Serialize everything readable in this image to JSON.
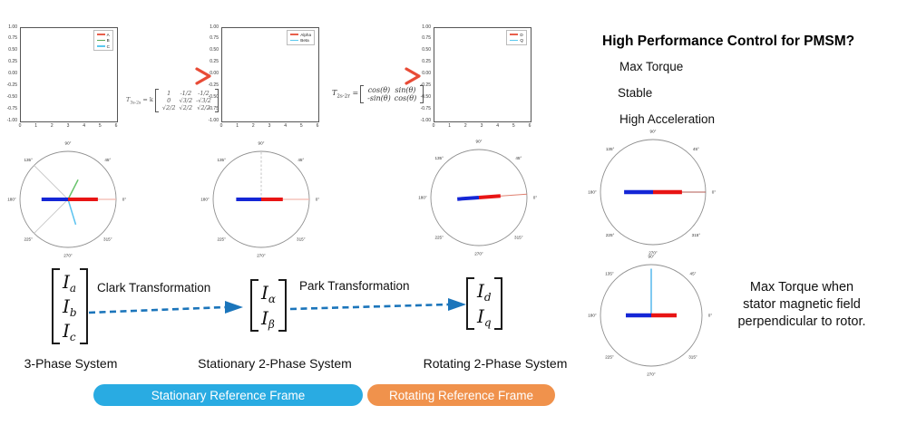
{
  "colors": {
    "button_blue": "#29abe2",
    "button_orange": "#f0924c",
    "flow_arrow_blue": "#1b75bb",
    "gradient_arrow_start": "#2aa9e0",
    "gradient_arrow_end": "#e84b36",
    "vector_red": "#e81414",
    "vector_blue": "#1426d6"
  },
  "chart_data": {
    "line_charts": [
      {
        "type": "line",
        "title": "",
        "x_ticks": [
          "0",
          "1",
          "2",
          "3",
          "4",
          "5",
          "6"
        ],
        "y_ticks": [
          "1.00",
          "0.75",
          "0.50",
          "0.25",
          "0.00",
          "-0.25",
          "-0.50",
          "-0.75",
          "-1.00"
        ],
        "xlim": [
          0,
          6.3
        ],
        "ylim": [
          -1.05,
          1.05
        ],
        "grid": false,
        "legend_position": "upper right",
        "series": [
          {
            "name": "A",
            "color": "#e8604c",
            "values": []
          },
          {
            "name": "B",
            "color": "#5aa85a",
            "values": []
          },
          {
            "name": "C",
            "color": "#5bc8ee",
            "values": []
          }
        ]
      },
      {
        "type": "line",
        "title": "",
        "x_ticks": [
          "0",
          "1",
          "2",
          "3",
          "4",
          "5",
          "6"
        ],
        "y_ticks": [
          "1.00",
          "0.75",
          "0.50",
          "0.25",
          "0.00",
          "-0.25",
          "-0.50",
          "-0.75",
          "-1.00"
        ],
        "xlim": [
          0,
          6.3
        ],
        "ylim": [
          -1.05,
          1.05
        ],
        "grid": false,
        "legend_position": "upper right",
        "series": [
          {
            "name": "Alpha",
            "color": "#e8604c",
            "values": []
          },
          {
            "name": "Beta",
            "color": "#5bc8ee",
            "values": []
          }
        ]
      },
      {
        "type": "line",
        "title": "",
        "x_ticks": [
          "0",
          "1",
          "2",
          "3",
          "4",
          "5",
          "6"
        ],
        "y_ticks": [
          "1.00",
          "0.75",
          "0.50",
          "0.25",
          "0.00",
          "-0.25",
          "-0.50",
          "-0.75",
          "-1.00"
        ],
        "xlim": [
          0,
          6.3
        ],
        "ylim": [
          -1.05,
          1.05
        ],
        "grid": false,
        "legend_position": "upper right",
        "series": [
          {
            "name": "D",
            "color": "#e8604c",
            "values": []
          },
          {
            "name": "Q",
            "color": "#5bc8ee",
            "values": []
          }
        ]
      }
    ],
    "polar_plots": [
      {
        "name": "3-phase current vectors",
        "angle_labels": [
          "0°",
          "45°",
          "90°",
          "135°",
          "180°",
          "225°",
          "270°",
          "315°"
        ],
        "radius": 53,
        "vectors": [
          {
            "angle": 135,
            "len": 1.0,
            "color": "#c9c9c9",
            "width": 0.9
          },
          {
            "angle": 225,
            "len": 1.0,
            "color": "#c9c9c9",
            "width": 0.9
          },
          {
            "angle": 0,
            "len": 1.0,
            "color": "#f2b6ae",
            "width": 1.2
          },
          {
            "angle": 63,
            "len": 0.46,
            "color": "#66c26a",
            "width": 1.5
          },
          {
            "angle": 287,
            "len": 0.55,
            "color": "#5bc3f0",
            "width": 1.5
          },
          {
            "angle": 180,
            "len": 0.55,
            "color": "#1426d6",
            "width": 4
          },
          {
            "angle": 0,
            "len": 0.62,
            "color": "#e81414",
            "width": 4
          }
        ]
      },
      {
        "name": "stationary 2-phase vectors",
        "angle_labels": [
          "0°",
          "45°",
          "90°",
          "135°",
          "180°",
          "225°",
          "270°",
          "315°"
        ],
        "radius": 53,
        "vectors": [
          {
            "angle": 90,
            "len": 1.0,
            "color": "#bfbfbf",
            "width": 0.9,
            "dash": true
          },
          {
            "angle": 0,
            "len": 1.0,
            "color": "#f2b6ae",
            "width": 1.2
          },
          {
            "angle": 180,
            "len": 0.52,
            "color": "#1426d6",
            "width": 4
          },
          {
            "angle": 0,
            "len": 0.45,
            "color": "#e81414",
            "width": 4
          }
        ]
      },
      {
        "name": "rotating 2-phase vectors",
        "angle_labels": [
          "0°",
          "45°",
          "90°",
          "135°",
          "180°",
          "225°",
          "270°",
          "315°"
        ],
        "radius": 53,
        "vectors": [
          {
            "angle": 4,
            "len": 1.0,
            "color": "#e08070",
            "width": 1
          },
          {
            "angle": 184,
            "len": 0.45,
            "color": "#1426d6",
            "width": 4
          },
          {
            "angle": 4,
            "len": 0.45,
            "color": "#e81414",
            "width": 4
          }
        ]
      },
      {
        "name": "aligned stator field",
        "angle_labels": [
          "0°",
          "45°",
          "90°",
          "135°",
          "180°",
          "225°",
          "270°",
          "315°"
        ],
        "radius": 58,
        "vectors": [
          {
            "angle": 0,
            "len": 1.0,
            "color": "#b05a50",
            "width": 1
          },
          {
            "angle": 180,
            "len": 0.55,
            "color": "#1426d6",
            "width": 4.5
          },
          {
            "angle": 0,
            "len": 0.55,
            "color": "#e81414",
            "width": 4.5
          }
        ]
      },
      {
        "name": "perpendicular stator field",
        "angle_labels": [
          "0°",
          "45°",
          "90°",
          "135°",
          "180°",
          "225°",
          "270°",
          "315°"
        ],
        "radius": 56,
        "vectors": [
          {
            "angle": 90,
            "len": 0.92,
            "color": "#55b9ec",
            "width": 1.5
          },
          {
            "angle": 180,
            "len": 0.5,
            "color": "#1426d6",
            "width": 4.5
          },
          {
            "angle": 0,
            "len": 0.5,
            "color": "#e81414",
            "width": 4.5
          }
        ]
      }
    ]
  },
  "formulas": {
    "clarke": {
      "lhs": "T",
      "sub": "3s-2s",
      "eq": "= k",
      "rows": [
        [
          "1",
          "-1/2",
          "-1/2"
        ],
        [
          "0",
          "√3/2",
          "-√3/2"
        ],
        [
          "√2/2",
          "√2/2",
          "√2/2"
        ]
      ]
    },
    "park": {
      "lhs": "T",
      "sub": "2s-2r",
      "eq": "=",
      "rows": [
        [
          "cos(θ)",
          "sin(θ)"
        ],
        [
          "-sin(θ)",
          "cos(θ)"
        ]
      ]
    }
  },
  "flow": {
    "vectors": [
      {
        "name": "abc",
        "entries": [
          [
            "I",
            "a"
          ],
          [
            "I",
            "b"
          ],
          [
            "I",
            "c"
          ]
        ]
      },
      {
        "name": "alphabeta",
        "entries": [
          [
            "I",
            "α"
          ],
          [
            "I",
            "β"
          ]
        ]
      },
      {
        "name": "dq",
        "entries": [
          [
            "I",
            "d"
          ],
          [
            "I",
            "q"
          ]
        ]
      }
    ],
    "clark_label": "Clark Transformation",
    "park_label": "Park Transformation",
    "system_labels": [
      "3-Phase System",
      "Stationary 2-Phase System",
      "Rotating 2-Phase System"
    ]
  },
  "buttons": [
    {
      "label": "Stationary Reference Frame",
      "color": "#29abe2"
    },
    {
      "label": "Rotating Reference Frame",
      "color": "#f0924c"
    }
  ],
  "right_panel": {
    "title": "High Performance Control for PMSM?",
    "bullets": [
      "Max Torque",
      "Stable",
      "High Acceleration"
    ],
    "note_lines": [
      "Max Torque when",
      "stator magnetic field",
      "perpendicular to rotor."
    ]
  }
}
